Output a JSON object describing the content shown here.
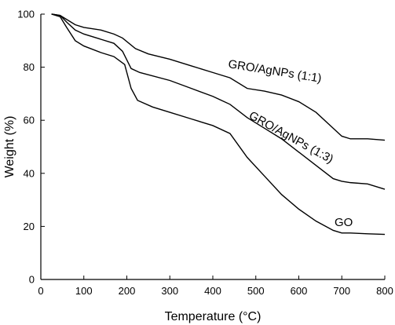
{
  "chart_data": {
    "type": "line",
    "xlabel": "Temperature (°C)",
    "ylabel": "Weight (%)",
    "xlim": [
      0,
      800
    ],
    "ylim": [
      0,
      100
    ],
    "x_ticks": [
      0,
      100,
      200,
      300,
      400,
      500,
      600,
      700,
      800
    ],
    "y_ticks": [
      0,
      20,
      40,
      60,
      80,
      100
    ],
    "grid": false,
    "series": [
      {
        "name": "GRO/AgNPs (1:1)",
        "points": [
          [
            25,
            100
          ],
          [
            45,
            99.5
          ],
          [
            60,
            98
          ],
          [
            80,
            96
          ],
          [
            100,
            95
          ],
          [
            140,
            94
          ],
          [
            170,
            92.5
          ],
          [
            190,
            91
          ],
          [
            220,
            87
          ],
          [
            250,
            85
          ],
          [
            300,
            83
          ],
          [
            350,
            80.5
          ],
          [
            400,
            78
          ],
          [
            440,
            76
          ],
          [
            480,
            72
          ],
          [
            520,
            71
          ],
          [
            560,
            69.5
          ],
          [
            600,
            67
          ],
          [
            640,
            63
          ],
          [
            680,
            57
          ],
          [
            700,
            54
          ],
          [
            720,
            53
          ],
          [
            760,
            53
          ],
          [
            800,
            52.5
          ]
        ]
      },
      {
        "name": "GRO/AgNPs (1:3)",
        "points": [
          [
            25,
            100
          ],
          [
            45,
            99.5
          ],
          [
            60,
            97
          ],
          [
            80,
            94
          ],
          [
            100,
            92.5
          ],
          [
            140,
            90.5
          ],
          [
            170,
            89
          ],
          [
            190,
            86
          ],
          [
            210,
            79.5
          ],
          [
            230,
            78
          ],
          [
            300,
            75
          ],
          [
            350,
            72
          ],
          [
            400,
            69
          ],
          [
            440,
            66
          ],
          [
            480,
            61
          ],
          [
            520,
            57
          ],
          [
            560,
            53
          ],
          [
            600,
            48
          ],
          [
            640,
            43
          ],
          [
            680,
            38
          ],
          [
            700,
            37
          ],
          [
            720,
            36.5
          ],
          [
            760,
            36
          ],
          [
            800,
            34
          ]
        ]
      },
      {
        "name": "GO",
        "points": [
          [
            25,
            100
          ],
          [
            45,
            99
          ],
          [
            60,
            95
          ],
          [
            80,
            90
          ],
          [
            100,
            88
          ],
          [
            140,
            85.5
          ],
          [
            170,
            84
          ],
          [
            195,
            81
          ],
          [
            210,
            72
          ],
          [
            225,
            67.5
          ],
          [
            260,
            65
          ],
          [
            300,
            63
          ],
          [
            350,
            60.5
          ],
          [
            400,
            58
          ],
          [
            440,
            55
          ],
          [
            480,
            46
          ],
          [
            520,
            39
          ],
          [
            560,
            32
          ],
          [
            600,
            26.5
          ],
          [
            640,
            22
          ],
          [
            680,
            18.5
          ],
          [
            700,
            17.5
          ],
          [
            720,
            17.5
          ],
          [
            760,
            17.2
          ],
          [
            800,
            17
          ]
        ]
      }
    ],
    "annotations": [
      {
        "text": "GRO/AgNPs (1:1)",
        "series": 0
      },
      {
        "text": "GRO/AgNPs (1:3)",
        "series": 1
      },
      {
        "text": "GO",
        "series": 2
      }
    ]
  }
}
